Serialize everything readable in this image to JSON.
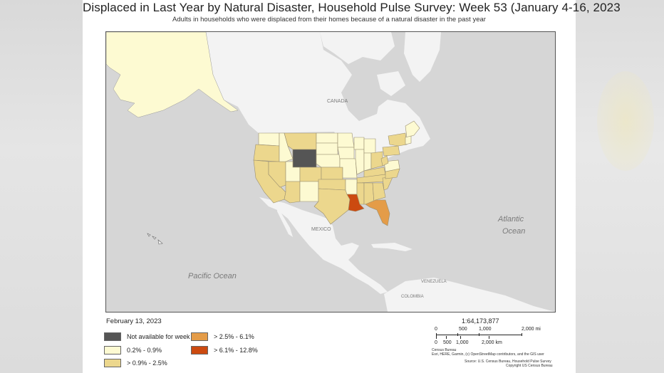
{
  "title": "Displaced in Last Year by Natural Disaster, Household Pulse Survey: Week 53 (January 4-16, 2023",
  "subtitle": "Adults in households who were displaced from their homes because of a natural disaster in the past year",
  "map_labels": {
    "canada": "CANADA",
    "mexico": "MEXICO",
    "atlantic_1": "Atlantic",
    "atlantic_2": "Ocean",
    "pacific": "Pacific Ocean",
    "venezuela": "VENEZUELA",
    "colombia": "COLOMBIA"
  },
  "colors": {
    "land": "#f3f3f3",
    "water": "#d6d6d6",
    "na": "#555555",
    "c1": "#fdfad2",
    "c2": "#ecd78d",
    "c3": "#e49c48",
    "c4": "#cc4a10"
  },
  "date": "February 13, 2023",
  "legend": [
    {
      "label": "Not available for week",
      "color": "#555555"
    },
    {
      "label": "0.2% - 0.9%",
      "color": "#fdfad2"
    },
    {
      "label": "> 0.9% - 2.5%",
      "color": "#ecd78d"
    },
    {
      "label": "> 2.5% - 6.1%",
      "color": "#e49c48"
    },
    {
      "label": "> 6.1% - 12.8%",
      "color": "#cc4a10"
    }
  ],
  "scale": {
    "ratio": "1:64,173,877",
    "mi_ticks": [
      "0",
      "500",
      "1,000",
      "2,000 mi"
    ],
    "km_ticks": [
      "0",
      "500",
      "1,000",
      "2,000 km"
    ],
    "credits": [
      "Census Bureau",
      "Esri, HERE, Garmin, (c) OpenStreetMap contributors, and the GIS user",
      "Source: U.S. Census Bureau, Household Pulse Survey",
      "Copyright US Census Bureau"
    ]
  }
}
